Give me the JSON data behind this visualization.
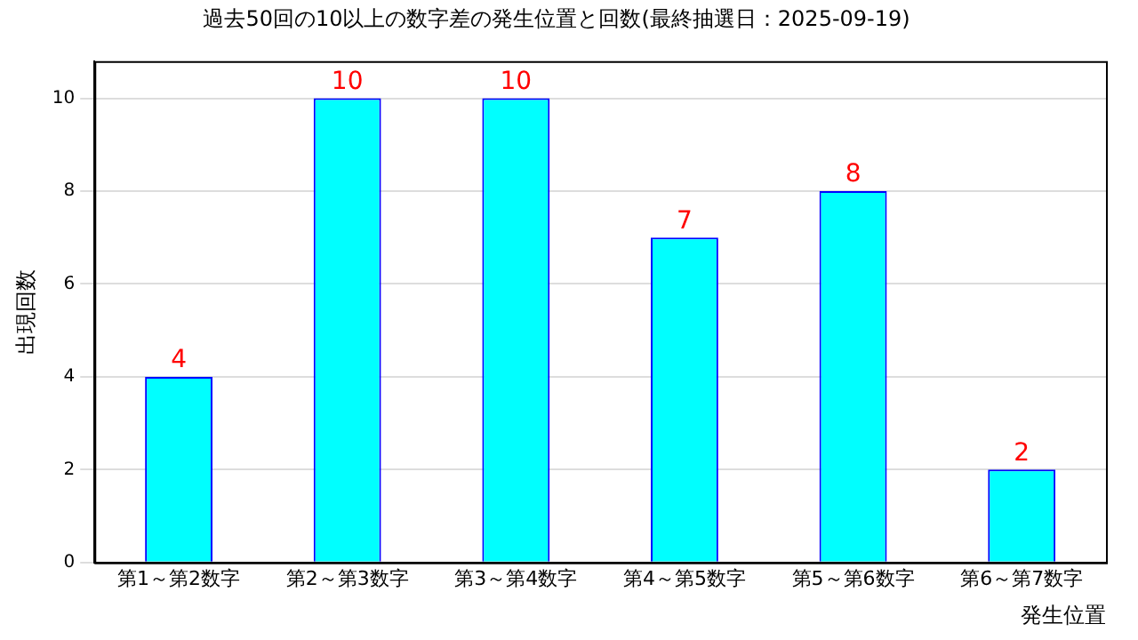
{
  "chart_data": {
    "type": "bar",
    "title": "過去50回の10以上の数字差の発生位置と回数(最終抽選日：2025-09-19)",
    "xlabel": "発生位置",
    "ylabel": "出現回数",
    "categories": [
      "第1～第2数字",
      "第2～第3数字",
      "第3～第4数字",
      "第4～第5数字",
      "第5～第6数字",
      "第6～第7数字"
    ],
    "series": [
      {
        "color": "#00ffff",
        "values": [
          4,
          10,
          10,
          7,
          8,
          2
        ]
      }
    ],
    "ylim": [
      0,
      10.8
    ],
    "yticks": [
      0,
      2,
      4,
      6,
      8,
      10
    ],
    "grid": "y",
    "data_labels": true
  }
}
